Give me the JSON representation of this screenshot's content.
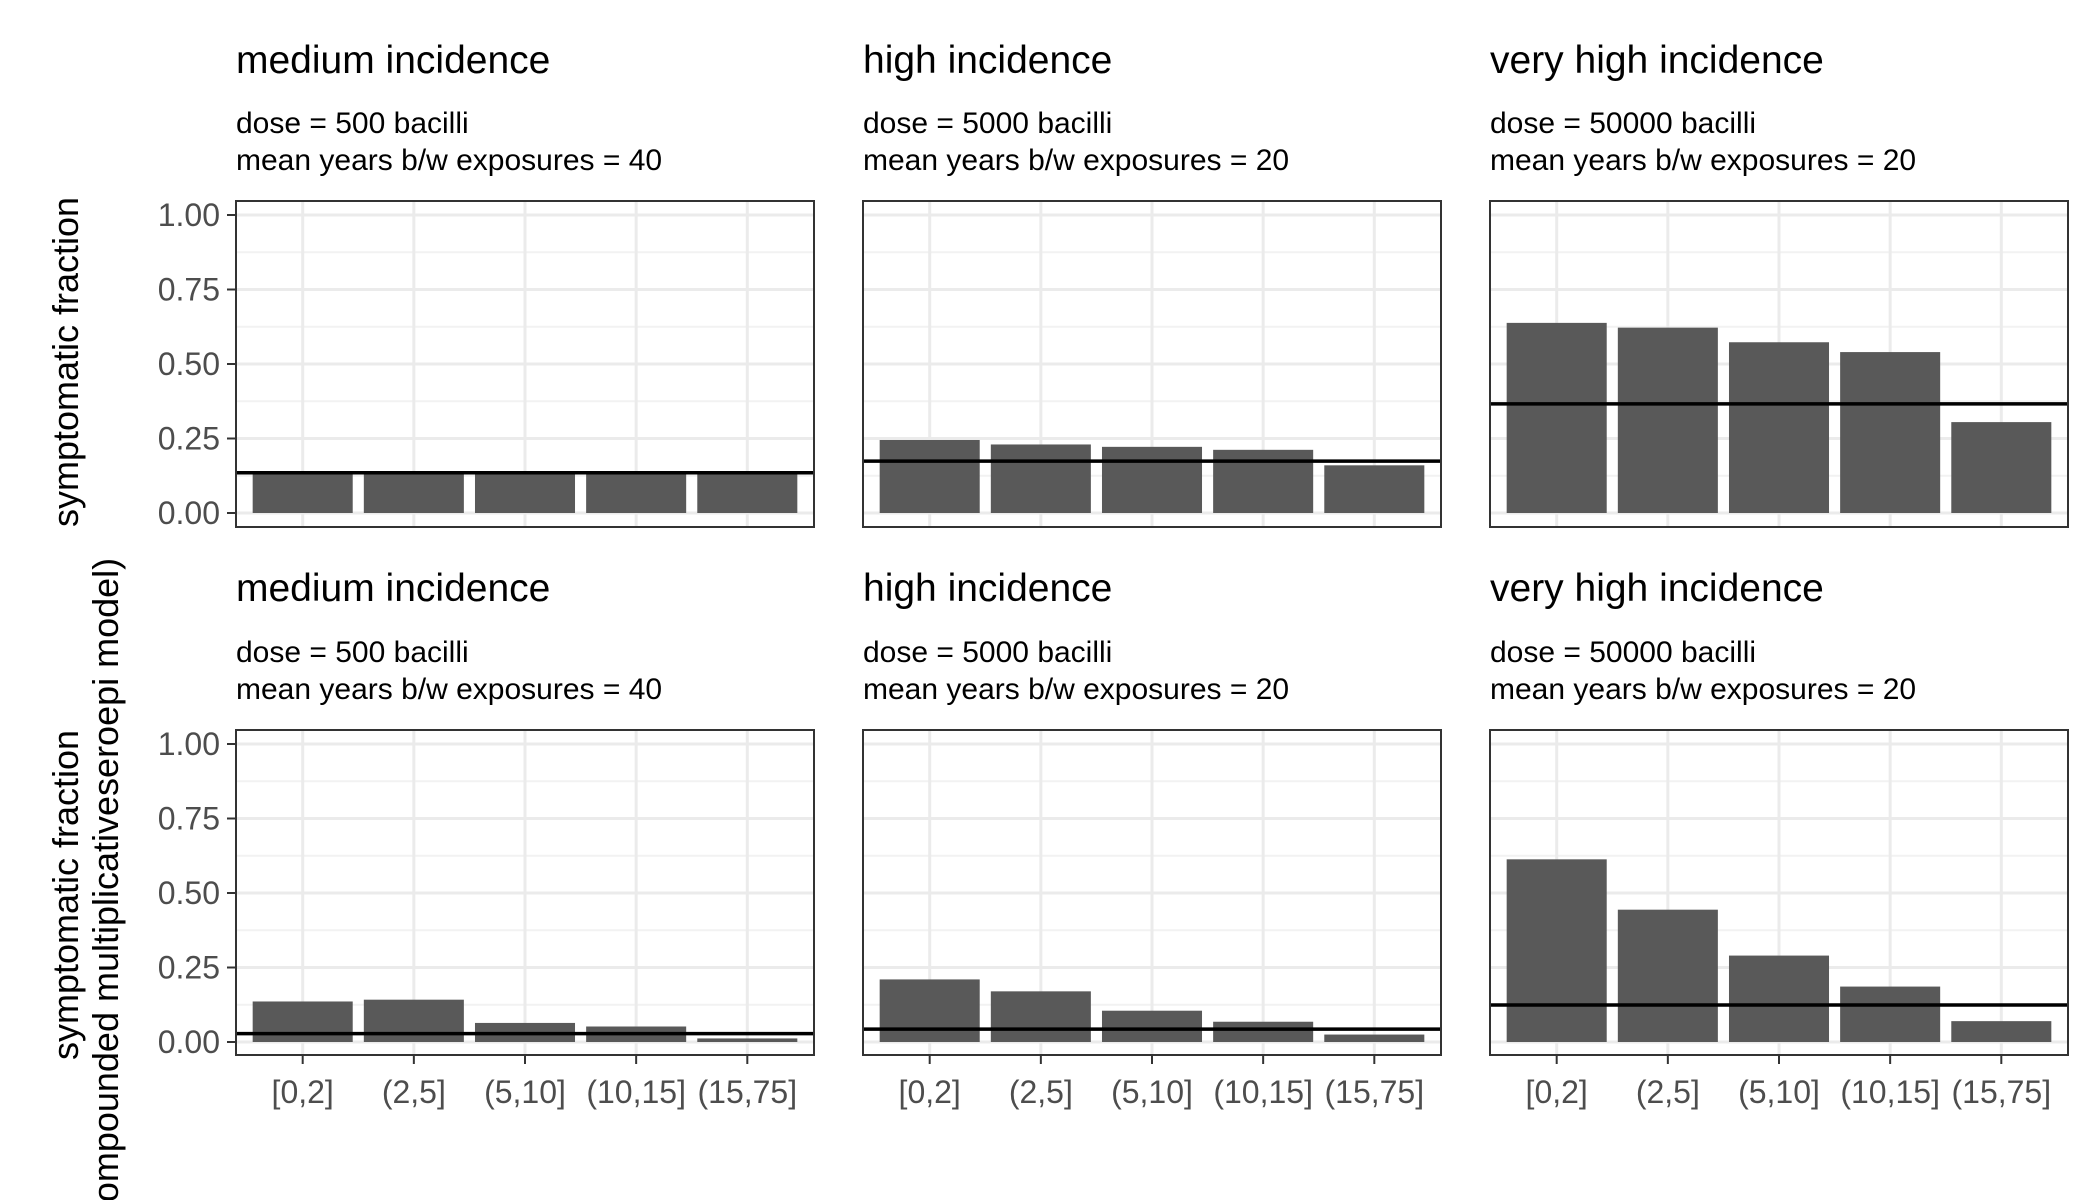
{
  "chart_data": [
    {
      "type": "bar",
      "title": "medium incidence",
      "subtitle": [
        "dose = 500 bacilli",
        "mean years b/w exposures = 40"
      ],
      "ylabel": "symptomatic fraction",
      "categories": [
        "[0,2]",
        "(2,5]",
        "(5,10]",
        "(10,15]",
        "(15,75]"
      ],
      "values": [
        0.135,
        0.135,
        0.135,
        0.135,
        0.135
      ],
      "hline": 0.135,
      "ylim": [
        0,
        1
      ],
      "yticks": [
        "0.00",
        "0.25",
        "0.50",
        "0.75",
        "1.00"
      ],
      "grid": true,
      "bar_color": "#595959"
    },
    {
      "type": "bar",
      "title": "high incidence",
      "subtitle": [
        "dose = 5000 bacilli",
        "mean years b/w exposures = 20"
      ],
      "categories": [
        "[0,2]",
        "(2,5]",
        "(5,10]",
        "(10,15]",
        "(15,75]"
      ],
      "values": [
        0.245,
        0.23,
        0.222,
        0.212,
        0.16
      ],
      "hline": 0.174,
      "ylim": [
        0,
        1
      ],
      "grid": true,
      "bar_color": "#595959"
    },
    {
      "type": "bar",
      "title": "very high incidence",
      "subtitle": [
        "dose = 50000 bacilli",
        "mean years b/w exposures = 20"
      ],
      "categories": [
        "[0,2]",
        "(2,5]",
        "(5,10]",
        "(10,15]",
        "(15,75]"
      ],
      "values": [
        0.638,
        0.622,
        0.573,
        0.54,
        0.305
      ],
      "hline": 0.366,
      "ylim": [
        0,
        1
      ],
      "grid": true,
      "bar_color": "#595959"
    },
    {
      "type": "bar",
      "title": "medium incidence",
      "subtitle": [
        "dose = 500 bacilli",
        "mean years b/w exposures = 40"
      ],
      "ylabel": "symptomatic fraction",
      "ylabel2": "(compounded multiplicativeseroepi model)",
      "categories": [
        "[0,2]",
        "(2,5]",
        "(5,10]",
        "(10,15]",
        "(15,75]"
      ],
      "values": [
        0.136,
        0.142,
        0.064,
        0.052,
        0.012
      ],
      "hline": 0.028,
      "ylim": [
        0,
        1
      ],
      "yticks": [
        "0.00",
        "0.25",
        "0.50",
        "0.75",
        "1.00"
      ],
      "grid": true,
      "bar_color": "#595959"
    },
    {
      "type": "bar",
      "title": "high incidence",
      "subtitle": [
        "dose = 5000 bacilli",
        "mean years b/w exposures = 20"
      ],
      "categories": [
        "[0,2]",
        "(2,5]",
        "(5,10]",
        "(10,15]",
        "(15,75]"
      ],
      "values": [
        0.21,
        0.17,
        0.105,
        0.068,
        0.025
      ],
      "hline": 0.043,
      "ylim": [
        0,
        1
      ],
      "grid": true,
      "bar_color": "#595959"
    },
    {
      "type": "bar",
      "title": "very high incidence",
      "subtitle": [
        "dose = 50000 bacilli",
        "mean years b/w exposures = 20"
      ],
      "categories": [
        "[0,2]",
        "(2,5]",
        "(5,10]",
        "(10,15]",
        "(15,75]"
      ],
      "values": [
        0.613,
        0.444,
        0.29,
        0.186,
        0.07
      ],
      "hline": 0.124,
      "ylim": [
        0,
        1
      ],
      "grid": true,
      "bar_color": "#595959"
    }
  ]
}
